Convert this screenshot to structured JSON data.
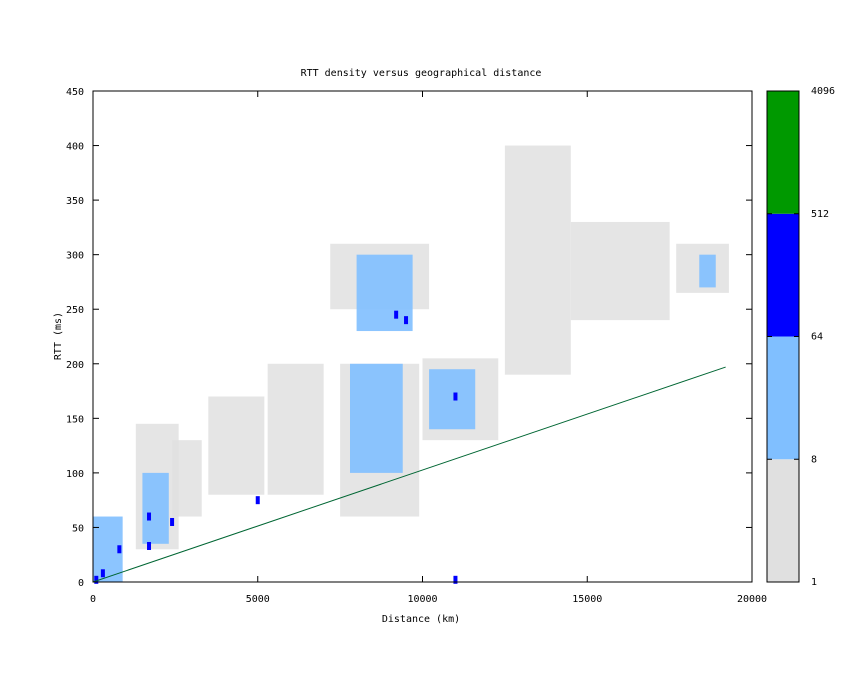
{
  "chart_data": {
    "type": "heatmap",
    "title": "RTT density versus geographical distance",
    "xlabel": "Distance (km)",
    "ylabel": "RTT (ms)",
    "xlim": [
      0,
      20000
    ],
    "ylim": [
      0,
      450
    ],
    "x_ticks": [
      "0",
      "5000",
      "10000",
      "15000",
      "20000"
    ],
    "y_ticks": [
      "0",
      "50",
      "100",
      "150",
      "200",
      "250",
      "300",
      "350",
      "400",
      "450"
    ],
    "x_tick_values": [
      0,
      5000,
      10000,
      15000,
      20000
    ],
    "y_tick_values": [
      0,
      50,
      100,
      150,
      200,
      250,
      300,
      350,
      400,
      450
    ],
    "grid": false,
    "legend": "colorbar right",
    "colorbar": {
      "tick_labels": [
        "1",
        "8",
        "64",
        "512",
        "4096"
      ],
      "bands": [
        {
          "from": "1",
          "to": "8",
          "color": "#e0e0e0"
        },
        {
          "from": "8",
          "to": "64",
          "color": "#80bfff"
        },
        {
          "from": "64",
          "to": "512",
          "color": "#0000ff"
        },
        {
          "from": "512",
          "to": "4096",
          "color": "#009900"
        }
      ]
    },
    "reference_line": {
      "color": "#006633",
      "points": [
        [
          0,
          0
        ],
        [
          19200,
          197
        ]
      ]
    },
    "density_regions": [
      {
        "x": [
          0,
          900
        ],
        "y": [
          0,
          60
        ],
        "level": "light-blue"
      },
      {
        "x": [
          1300,
          2600
        ],
        "y": [
          30,
          145
        ],
        "level": "gray"
      },
      {
        "x": [
          1500,
          2300
        ],
        "y": [
          35,
          100
        ],
        "level": "light-blue"
      },
      {
        "x": [
          2400,
          3300
        ],
        "y": [
          60,
          130
        ],
        "level": "gray"
      },
      {
        "x": [
          3500,
          5200
        ],
        "y": [
          80,
          170
        ],
        "level": "gray"
      },
      {
        "x": [
          5300,
          7000
        ],
        "y": [
          80,
          200
        ],
        "level": "gray"
      },
      {
        "x": [
          7200,
          10200
        ],
        "y": [
          250,
          310
        ],
        "level": "gray"
      },
      {
        "x": [
          7500,
          9900
        ],
        "y": [
          60,
          200
        ],
        "level": "gray"
      },
      {
        "x": [
          8000,
          9700
        ],
        "y": [
          230,
          300
        ],
        "level": "light-blue"
      },
      {
        "x": [
          7800,
          9400
        ],
        "y": [
          100,
          200
        ],
        "level": "light-blue"
      },
      {
        "x": [
          10000,
          12300
        ],
        "y": [
          130,
          205
        ],
        "level": "gray"
      },
      {
        "x": [
          10200,
          11600
        ],
        "y": [
          140,
          195
        ],
        "level": "light-blue"
      },
      {
        "x": [
          12500,
          14500
        ],
        "y": [
          190,
          400
        ],
        "level": "gray"
      },
      {
        "x": [
          14500,
          17500
        ],
        "y": [
          240,
          330
        ],
        "level": "gray"
      },
      {
        "x": [
          17700,
          19300
        ],
        "y": [
          265,
          310
        ],
        "level": "gray"
      },
      {
        "x": [
          18400,
          18900
        ],
        "y": [
          270,
          300
        ],
        "level": "light-blue"
      }
    ],
    "dense_cells": [
      {
        "x": 300,
        "y": 8,
        "level": "blue"
      },
      {
        "x": 100,
        "y": 2,
        "level": "blue"
      },
      {
        "x": 800,
        "y": 30,
        "level": "blue"
      },
      {
        "x": 1700,
        "y": 33,
        "level": "blue"
      },
      {
        "x": 1700,
        "y": 60,
        "level": "blue"
      },
      {
        "x": 2400,
        "y": 55,
        "level": "blue"
      },
      {
        "x": 5000,
        "y": 75,
        "level": "blue"
      },
      {
        "x": 9200,
        "y": 245,
        "level": "blue"
      },
      {
        "x": 9500,
        "y": 240,
        "level": "blue"
      },
      {
        "x": 11000,
        "y": 170,
        "level": "blue"
      },
      {
        "x": 11000,
        "y": 2,
        "level": "blue"
      }
    ]
  }
}
